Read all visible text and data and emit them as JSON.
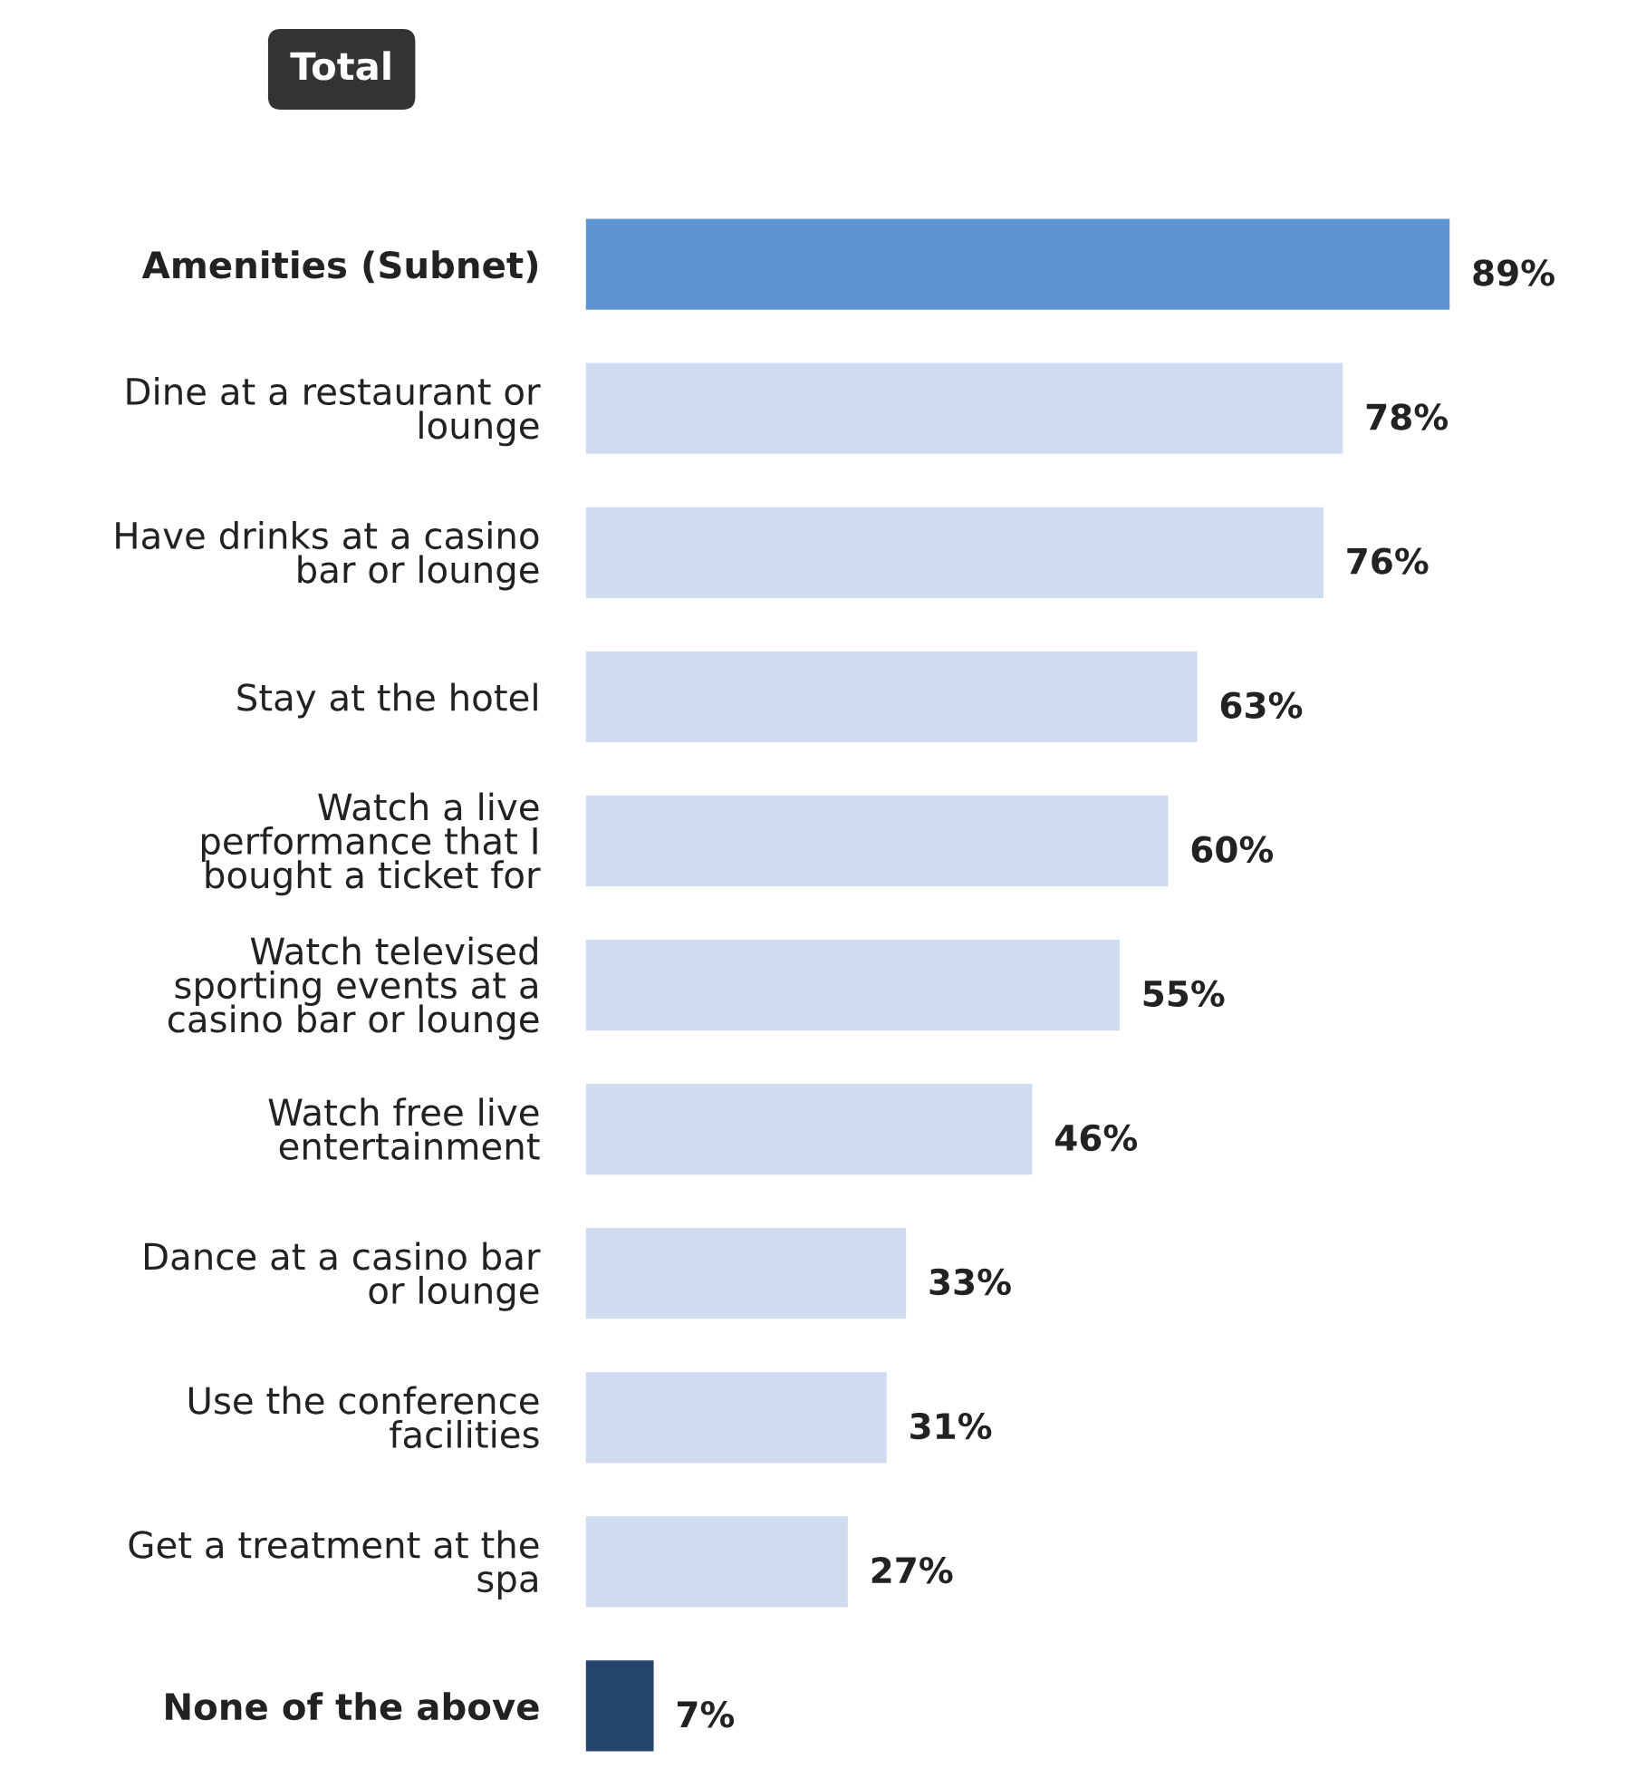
{
  "chart_data": {
    "type": "bar",
    "orientation": "horizontal",
    "title": "Total",
    "categories": [
      "Amenities (Subnet)",
      "Dine at a restaurant or lounge",
      "Have drinks at a casino bar or lounge",
      "Stay at the hotel",
      "Watch a live performance that I bought a ticket for",
      "Watch televised sporting events at a casino bar or lounge",
      "Watch free live entertainment",
      "Dance at a casino bar or lounge",
      "Use the conference facilities",
      "Get a treatment at the spa",
      "None of the above"
    ],
    "values": [
      89,
      78,
      76,
      63,
      60,
      55,
      46,
      33,
      31,
      27,
      7
    ],
    "colors": [
      "#5b93d3",
      "#cfdcef",
      "#cfdcef",
      "#cfdcef",
      "#cfdcef",
      "#cfdcef",
      "#cfdcef",
      "#cfdcef",
      "#cfdcef",
      "#cfdcef",
      "#24446e"
    ],
    "value_labels": [
      "89%",
      "78%",
      "76%",
      "63%",
      "60%",
      "55%",
      "46%",
      "33%",
      "31%",
      "27%",
      "7%"
    ],
    "grid": false,
    "legend": false
  }
}
